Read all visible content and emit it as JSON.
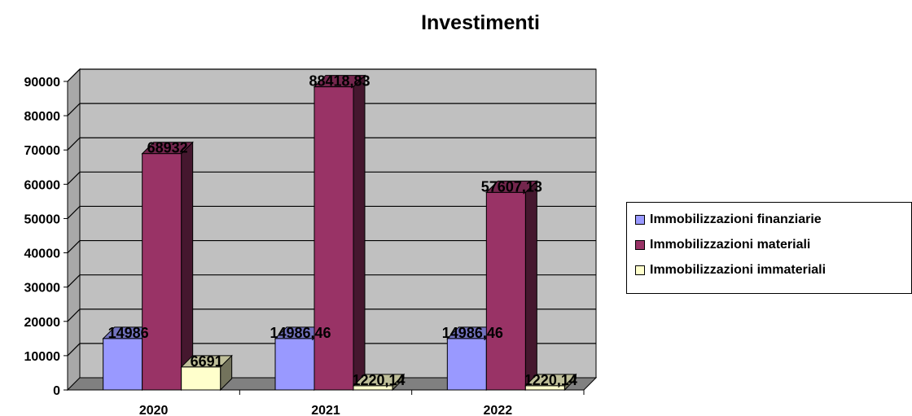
{
  "chart_data": {
    "type": "bar",
    "title": "Investimenti",
    "categories": [
      "2020",
      "2021",
      "2022"
    ],
    "ylim": [
      0,
      90000
    ],
    "yticks": [
      0,
      10000,
      20000,
      30000,
      40000,
      50000,
      60000,
      70000,
      80000,
      90000
    ],
    "grid": true,
    "legend_position": "right",
    "series": [
      {
        "name": "Immobilizzazioni finanziarie",
        "color": "#9999ff",
        "values": [
          14986,
          14986.46,
          14986.46
        ],
        "labels": [
          "14986",
          "14986,46",
          "14986,46"
        ]
      },
      {
        "name": "Immobilizzazioni materiali",
        "color": "#993366",
        "values": [
          68932,
          88418.83,
          57607.13
        ],
        "labels": [
          "68932",
          "88418,83",
          "57607,13"
        ]
      },
      {
        "name": "Immobilizzazioni immateriali",
        "color": "#ffffcc",
        "values": [
          6691,
          1220.14,
          1220.14
        ],
        "labels": [
          "6691",
          "1220,14",
          "1220,14"
        ]
      }
    ]
  }
}
